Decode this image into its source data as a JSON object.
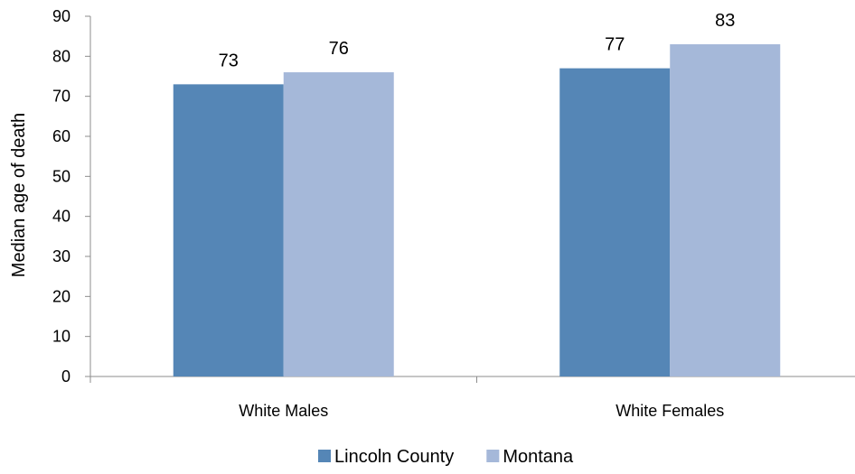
{
  "chart_data": {
    "type": "bar",
    "categories": [
      "White Males",
      "White Females"
    ],
    "series": [
      {
        "name": "Lincoln County",
        "values": [
          73,
          77
        ],
        "labels": [
          "73",
          "77"
        ],
        "color": "#5586B6"
      },
      {
        "name": "Montana",
        "values": [
          76,
          83
        ],
        "labels": [
          "76",
          "83"
        ],
        "color": "#A5B8D9"
      }
    ],
    "ylabel": "Median age of death",
    "ylim": [
      0,
      90
    ],
    "yticks": [
      0,
      10,
      20,
      30,
      40,
      50,
      60,
      70,
      80,
      90
    ],
    "grid": false,
    "legend_position": "bottom"
  }
}
